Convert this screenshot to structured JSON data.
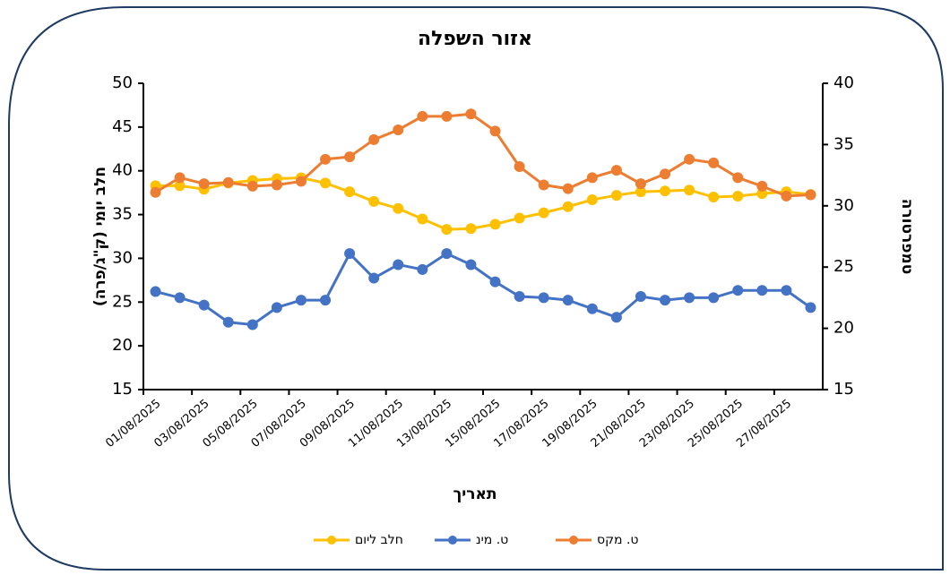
{
  "chart_data": {
    "type": "line",
    "title": "אזור השפלה",
    "x_label": "תאריך",
    "y_label": "חלב יומי (ק\"ג/פרה)",
    "y2_label": "טמפרטורה",
    "categories": [
      "01/08/2025",
      null,
      "03/08/2025",
      null,
      "05/08/2025",
      null,
      "07/08/2025",
      null,
      "09/08/2025",
      null,
      "11/08/2025",
      null,
      "13/08/2025",
      null,
      "15/08/2025",
      null,
      "17/08/2025",
      null,
      "19/08/2025",
      null,
      "21/08/2025",
      null,
      "23/08/2025",
      null,
      "25/08/2025",
      null,
      "27/08/2025",
      null
    ],
    "ylim": [
      15,
      50
    ],
    "yticks": [
      15,
      20,
      25,
      30,
      35,
      40,
      45,
      50
    ],
    "y2lim": [
      15,
      40
    ],
    "y2ticks": [
      15,
      20,
      25,
      30,
      35,
      40
    ],
    "series": [
      {
        "name": "חלב ליום",
        "color": "#FFC000",
        "values": [
          38.3,
          38.3,
          37.9,
          38.6,
          38.9,
          39.1,
          39.2,
          38.6,
          37.6,
          36.5,
          35.7,
          34.5,
          33.3,
          33.4,
          33.9,
          34.6,
          35.2,
          35.9,
          36.7,
          37.2,
          37.6,
          37.7,
          37.8,
          37.0,
          37.1,
          37.4,
          37.6,
          37.3
        ]
      },
      {
        "name": "ט. מינ",
        "color": "#4472C4",
        "axis": "y2",
        "values": [
          23.0,
          22.5,
          21.9,
          20.5,
          20.3,
          21.7,
          22.3,
          22.3,
          26.1,
          24.1,
          25.2,
          24.8,
          26.1,
          25.2,
          23.8,
          22.6,
          22.5,
          22.3,
          21.6,
          20.9,
          22.6,
          22.3,
          22.5,
          22.5,
          23.1,
          23.1,
          23.1,
          21.7
        ]
      },
      {
        "name": "ט. מקס",
        "color": "#ED7D31",
        "axis": "y2",
        "values": [
          31.1,
          32.3,
          31.8,
          31.9,
          31.6,
          31.7,
          32.0,
          33.8,
          34.0,
          35.4,
          36.2,
          37.3,
          37.3,
          37.5,
          36.1,
          33.2,
          31.7,
          31.4,
          32.3,
          32.9,
          31.8,
          32.6,
          33.8,
          33.5,
          32.3,
          31.6,
          30.8,
          30.9
        ]
      }
    ]
  }
}
